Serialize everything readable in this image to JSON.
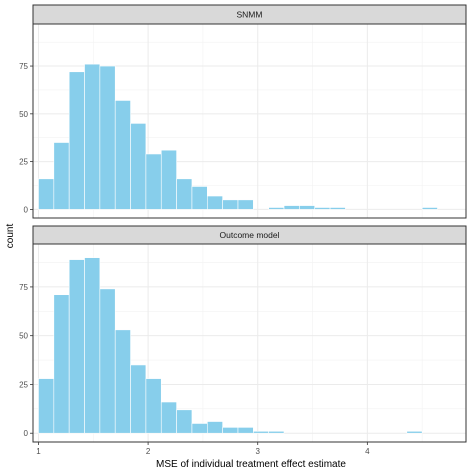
{
  "chart_data": {
    "type": "bar",
    "xlabel": "MSE of individual treatment effect estimate",
    "ylabel": "count",
    "xlim": [
      0.95,
      4.9
    ],
    "ylim": [
      -4.5,
      97
    ],
    "x_ticks": [
      1,
      2,
      3,
      4
    ],
    "y_ticks": [
      0,
      25,
      50,
      75
    ],
    "grid": true,
    "bar_color": "#87ceeb",
    "bin_width": 0.14,
    "panels": [
      {
        "strip_label": "SNMM",
        "bins": [
          {
            "x": 1.07,
            "count": 16
          },
          {
            "x": 1.21,
            "count": 35
          },
          {
            "x": 1.35,
            "count": 72
          },
          {
            "x": 1.49,
            "count": 76
          },
          {
            "x": 1.63,
            "count": 75
          },
          {
            "x": 1.77,
            "count": 57
          },
          {
            "x": 1.91,
            "count": 45
          },
          {
            "x": 2.05,
            "count": 29
          },
          {
            "x": 2.19,
            "count": 31
          },
          {
            "x": 2.33,
            "count": 16
          },
          {
            "x": 2.47,
            "count": 12
          },
          {
            "x": 2.61,
            "count": 7
          },
          {
            "x": 2.75,
            "count": 5
          },
          {
            "x": 2.89,
            "count": 5
          },
          {
            "x": 3.17,
            "count": 1
          },
          {
            "x": 3.31,
            "count": 2
          },
          {
            "x": 3.45,
            "count": 2
          },
          {
            "x": 3.59,
            "count": 1
          },
          {
            "x": 3.73,
            "count": 1
          },
          {
            "x": 4.57,
            "count": 1
          }
        ]
      },
      {
        "strip_label": "Outcome model",
        "bins": [
          {
            "x": 1.07,
            "count": 28
          },
          {
            "x": 1.21,
            "count": 71
          },
          {
            "x": 1.35,
            "count": 89
          },
          {
            "x": 1.49,
            "count": 90
          },
          {
            "x": 1.63,
            "count": 74
          },
          {
            "x": 1.77,
            "count": 53
          },
          {
            "x": 1.91,
            "count": 35
          },
          {
            "x": 2.05,
            "count": 28
          },
          {
            "x": 2.19,
            "count": 16
          },
          {
            "x": 2.33,
            "count": 12
          },
          {
            "x": 2.47,
            "count": 5
          },
          {
            "x": 2.61,
            "count": 6
          },
          {
            "x": 2.75,
            "count": 3
          },
          {
            "x": 2.89,
            "count": 3
          },
          {
            "x": 3.03,
            "count": 1
          },
          {
            "x": 3.17,
            "count": 1
          },
          {
            "x": 4.43,
            "count": 1
          }
        ]
      }
    ]
  }
}
